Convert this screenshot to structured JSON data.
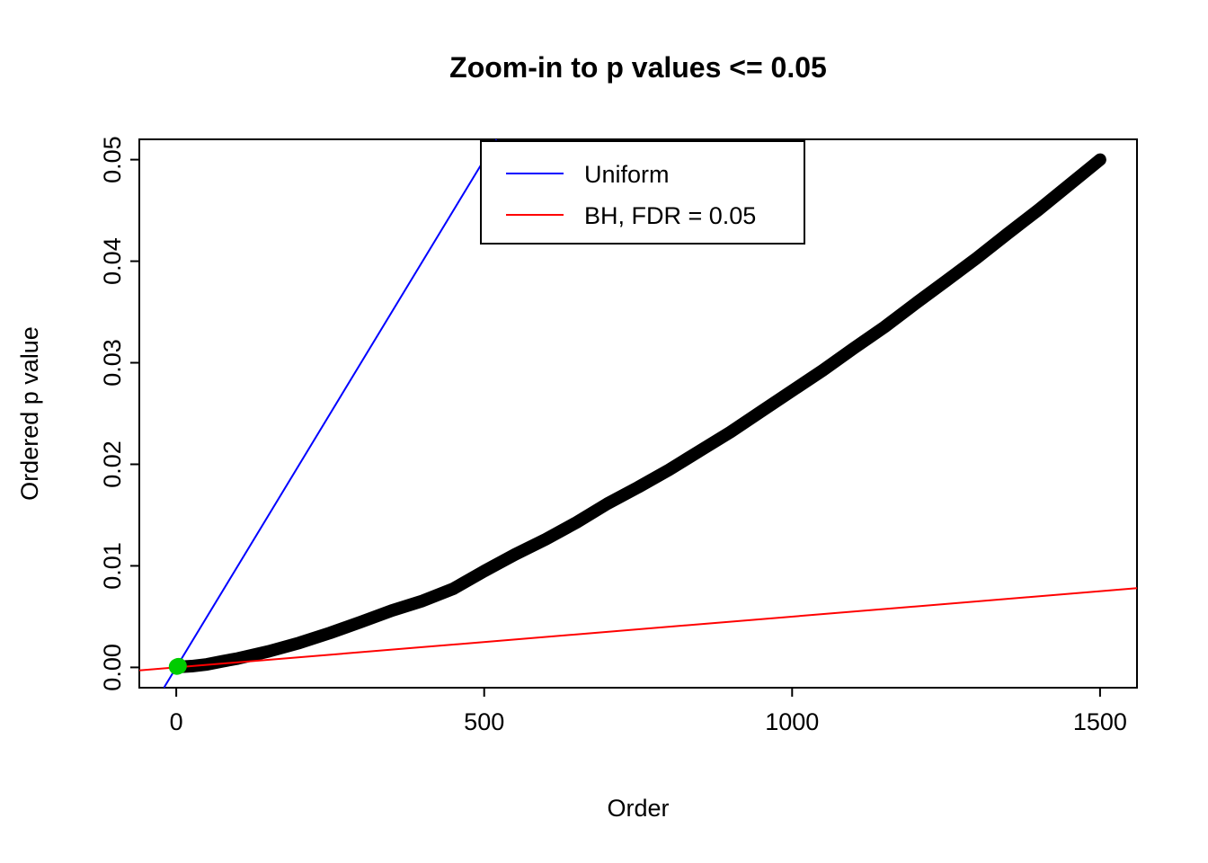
{
  "chart_data": {
    "type": "scatter",
    "title": "Zoom-in to p values <= 0.05",
    "xlabel": "Order",
    "ylabel": "Ordered p value",
    "xlim": [
      0,
      1500
    ],
    "ylim": [
      0,
      0.05
    ],
    "x_ticks": [
      0,
      500,
      1000,
      1500
    ],
    "x_tick_labels": [
      "0",
      "500",
      "1000",
      "1500"
    ],
    "y_ticks": [
      0,
      0.01,
      0.02,
      0.03,
      0.04,
      0.05
    ],
    "y_tick_labels": [
      "0.00",
      "0.01",
      "0.02",
      "0.03",
      "0.04",
      "0.05"
    ],
    "grid": false,
    "legend_position": "top",
    "legend": [
      {
        "label": "Uniform",
        "color": "#0000FF"
      },
      {
        "label": "BH, FDR = 0.05",
        "color": "#FF0000"
      }
    ],
    "series": [
      {
        "name": "ordered-p-values",
        "type": "points",
        "color": "#000000",
        "marker_size": 14,
        "points": [
          [
            1,
            4e-05
          ],
          [
            25,
            0.00012
          ],
          [
            50,
            0.0003
          ],
          [
            75,
            0.0006
          ],
          [
            100,
            0.00088
          ],
          [
            150,
            0.00158
          ],
          [
            200,
            0.00242
          ],
          [
            250,
            0.0034
          ],
          [
            300,
            0.00448
          ],
          [
            350,
            0.0056
          ],
          [
            400,
            0.00655
          ],
          [
            450,
            0.00775
          ],
          [
            500,
            0.00948
          ],
          [
            550,
            0.01112
          ],
          [
            600,
            0.01262
          ],
          [
            650,
            0.01428
          ],
          [
            700,
            0.01612
          ],
          [
            750,
            0.01774
          ],
          [
            800,
            0.01945
          ],
          [
            850,
            0.02132
          ],
          [
            900,
            0.02318
          ],
          [
            950,
            0.02522
          ],
          [
            1000,
            0.02724
          ],
          [
            1050,
            0.02926
          ],
          [
            1100,
            0.03142
          ],
          [
            1150,
            0.03352
          ],
          [
            1200,
            0.03582
          ],
          [
            1250,
            0.03806
          ],
          [
            1300,
            0.04032
          ],
          [
            1350,
            0.04272
          ],
          [
            1400,
            0.04506
          ],
          [
            1450,
            0.04752
          ],
          [
            1490,
            0.0495
          ],
          [
            1500,
            0.05
          ]
        ]
      },
      {
        "name": "significant-hits",
        "type": "points",
        "color": "#00CC00",
        "marker_size": 9,
        "points": [
          [
            1,
            6e-05
          ],
          [
            2,
            0.0001
          ],
          [
            4,
            0.00014
          ]
        ]
      }
    ],
    "lines": [
      {
        "name": "uniform-line",
        "color": "#0000FF",
        "x": [
          -20,
          520
        ],
        "y": [
          -0.002,
          0.052
        ]
      },
      {
        "name": "bh-line",
        "color": "#FF0000",
        "x": [
          -60,
          1560
        ],
        "y": [
          -0.0003,
          0.0078
        ]
      }
    ]
  }
}
